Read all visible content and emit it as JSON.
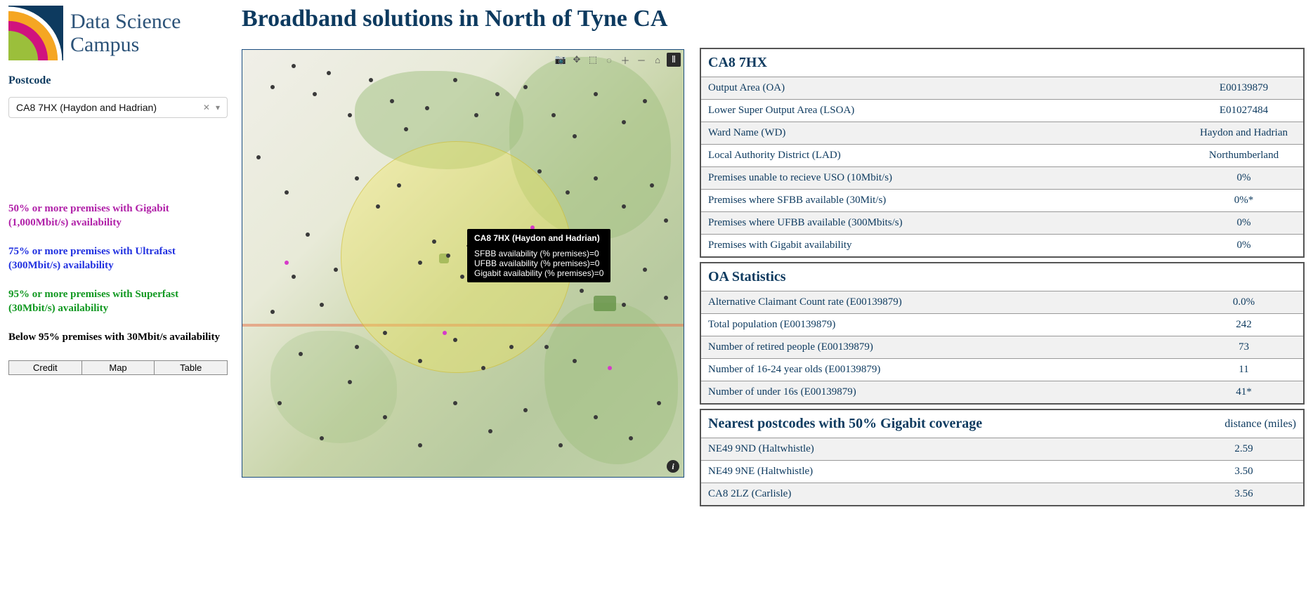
{
  "logo": {
    "line1": "Data Science",
    "line2": "Campus"
  },
  "sidebar": {
    "postcode_label": "Postcode",
    "postcode_selected": "CA8 7HX (Haydon and Hadrian)"
  },
  "legend": {
    "items": [
      {
        "text": "50% or more premises with Gigabit (1,000Mbit/s) availability",
        "color": "#b020a8"
      },
      {
        "text": "75% or more premises with Ultrafast (300Mbit/s) availability",
        "color": "#2030e0"
      },
      {
        "text": "95% or more premises with Superfast (30Mbit/s) availability",
        "color": "#109820"
      },
      {
        "text": "Below 95% premises with 30Mbit/s availability",
        "color": "#000000"
      }
    ]
  },
  "buttons": {
    "credit": "Credit",
    "map": "Map",
    "table": "Table"
  },
  "title": "Broadband solutions in North of Tyne CA",
  "tooltip": {
    "title": "CA8 7HX (Haydon and Hadrian)",
    "l1": "SFBB availability (% premises)=0",
    "l2": "UFBB availability (% premises)=0",
    "l3": "Gigabit availability (% premises)=0"
  },
  "table1": {
    "head": "CA8 7HX",
    "rows": [
      {
        "k": "Output Area (OA)",
        "v": "E00139879"
      },
      {
        "k": "Lower Super Output Area (LSOA)",
        "v": "E01027484"
      },
      {
        "k": "Ward Name (WD)",
        "v": "Haydon and Hadrian"
      },
      {
        "k": "Local Authority District (LAD)",
        "v": "Northumberland"
      },
      {
        "k": "Premises unable to recieve USO (10Mbit/s)",
        "v": "0%"
      },
      {
        "k": "Premises where SFBB available (30Mit/s)",
        "v": "0%*"
      },
      {
        "k": "Premises where UFBB available (300Mbits/s)",
        "v": "0%"
      },
      {
        "k": "Premises with Gigabit availability",
        "v": "0%"
      }
    ]
  },
  "table2": {
    "head": "OA Statistics",
    "rows": [
      {
        "k": "Alternative Claimant Count rate (E00139879)",
        "v": "0.0%"
      },
      {
        "k": "Total population (E00139879)",
        "v": "242"
      },
      {
        "k": "Number of retired people (E00139879)",
        "v": "73"
      },
      {
        "k": "Number of 16-24 year olds (E00139879)",
        "v": "11"
      },
      {
        "k": "Number of under 16s (E00139879)",
        "v": "41*"
      }
    ]
  },
  "table3": {
    "head": "Nearest postcodes with 50% Gigabit coverage",
    "head_r": "distance (miles)",
    "rows": [
      {
        "k": "NE49 9ND (Haltwhistle)",
        "v": "2.59"
      },
      {
        "k": "NE49 9NE (Haltwhistle)",
        "v": "3.50"
      },
      {
        "k": "CA8 2LZ (Carlisle)",
        "v": "3.56"
      }
    ]
  },
  "map_style": {
    "dot_color": "#3a3a3a",
    "dot_pink": "#d63ac9",
    "highlight_fill": "rgba(240,230,90,0.38)"
  },
  "map_dots": [
    [
      40,
      50
    ],
    [
      70,
      20
    ],
    [
      100,
      60
    ],
    [
      120,
      30
    ],
    [
      150,
      90
    ],
    [
      180,
      40
    ],
    [
      210,
      70
    ],
    [
      230,
      110
    ],
    [
      260,
      80
    ],
    [
      300,
      40
    ],
    [
      330,
      90
    ],
    [
      360,
      60
    ],
    [
      400,
      50
    ],
    [
      440,
      90
    ],
    [
      470,
      120
    ],
    [
      500,
      60
    ],
    [
      540,
      100
    ],
    [
      570,
      70
    ],
    [
      20,
      150
    ],
    [
      60,
      200
    ],
    [
      90,
      260
    ],
    [
      130,
      310
    ],
    [
      40,
      370
    ],
    [
      80,
      430
    ],
    [
      50,
      500
    ],
    [
      110,
      550
    ],
    [
      150,
      470
    ],
    [
      200,
      520
    ],
    [
      250,
      560
    ],
    [
      300,
      500
    ],
    [
      350,
      540
    ],
    [
      400,
      510
    ],
    [
      450,
      560
    ],
    [
      500,
      520
    ],
    [
      550,
      550
    ],
    [
      590,
      500
    ],
    [
      250,
      300
    ],
    [
      290,
      290
    ],
    [
      310,
      320
    ],
    [
      270,
      270
    ],
    [
      330,
      280
    ],
    [
      350,
      310
    ],
    [
      450,
      300
    ],
    [
      480,
      340
    ],
    [
      510,
      280
    ],
    [
      540,
      360
    ],
    [
      570,
      310
    ],
    [
      600,
      350
    ],
    [
      430,
      420
    ],
    [
      470,
      440
    ],
    [
      200,
      400
    ],
    [
      250,
      440
    ],
    [
      300,
      410
    ],
    [
      340,
      450
    ],
    [
      380,
      420
    ],
    [
      420,
      170
    ],
    [
      460,
      200
    ],
    [
      500,
      180
    ],
    [
      540,
      220
    ],
    [
      580,
      190
    ],
    [
      600,
      240
    ],
    [
      160,
      180
    ],
    [
      190,
      220
    ],
    [
      220,
      190
    ],
    [
      70,
      320
    ],
    [
      110,
      360
    ],
    [
      160,
      420
    ]
  ],
  "map_pink_dots": [
    [
      285,
      400
    ],
    [
      410,
      250
    ],
    [
      520,
      450
    ],
    [
      60,
      300
    ]
  ]
}
